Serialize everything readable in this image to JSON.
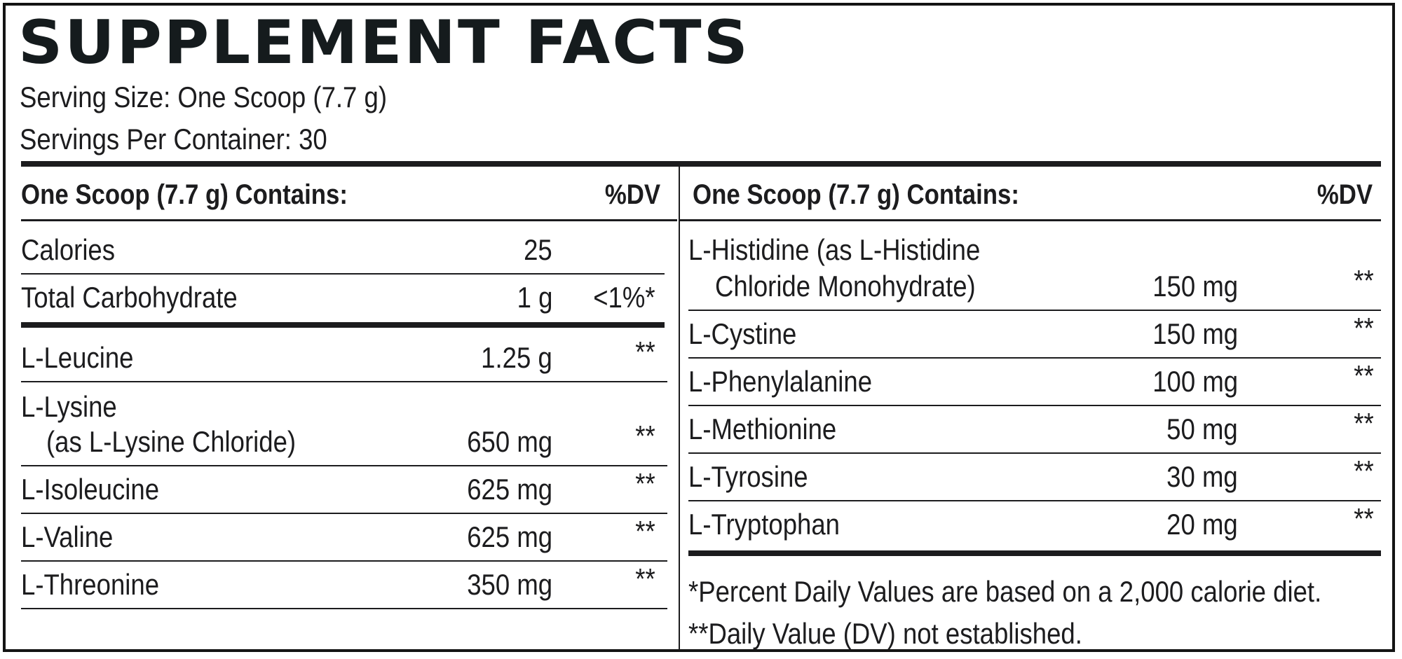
{
  "panel": {
    "title": "SUPPLEMENT FACTS",
    "serving_size": "Serving Size: One Scoop (7.7 g)",
    "servings_per_container": "Servings Per Container: 30"
  },
  "left_column": {
    "header": "One Scoop (7.7 g) Contains:",
    "dv_header": "%DV",
    "rows": [
      {
        "name": "Calories",
        "amount": "25",
        "dv": ""
      },
      {
        "name": "Total Carbohydrate",
        "amount": "1 g",
        "dv": "<1%*"
      },
      {
        "name": "L-Leucine",
        "amount": "1.25 g",
        "dv": "**"
      },
      {
        "name": "L-Lysine",
        "name2": "(as L-Lysine Chloride)",
        "amount": "650 mg",
        "dv": "**"
      },
      {
        "name": "L-Isoleucine",
        "amount": "625 mg",
        "dv": "**"
      },
      {
        "name": "L-Valine",
        "amount": "625 mg",
        "dv": "**"
      },
      {
        "name": "L-Threonine",
        "amount": "350 mg",
        "dv": "**"
      }
    ]
  },
  "right_column": {
    "header": "One Scoop (7.7 g) Contains:",
    "dv_header": "%DV",
    "rows": [
      {
        "name": "L-Histidine (as L-Histidine",
        "name2": "Chloride Monohydrate)",
        "amount": "150 mg",
        "dv": "**"
      },
      {
        "name": "L-Cystine",
        "amount": "150 mg",
        "dv": "**"
      },
      {
        "name": "L-Phenylalanine",
        "amount": "100 mg",
        "dv": "**"
      },
      {
        "name": "L-Methionine",
        "amount": "50 mg",
        "dv": "**"
      },
      {
        "name": "L-Tyrosine",
        "amount": "30 mg",
        "dv": "**"
      },
      {
        "name": "L-Tryptophan",
        "amount": "20 mg",
        "dv": "**"
      }
    ]
  },
  "footnotes": {
    "percent_daily": "*Percent Daily Values are based on a 2,000 calorie diet.",
    "not_established": "**Daily Value (DV) not established."
  }
}
